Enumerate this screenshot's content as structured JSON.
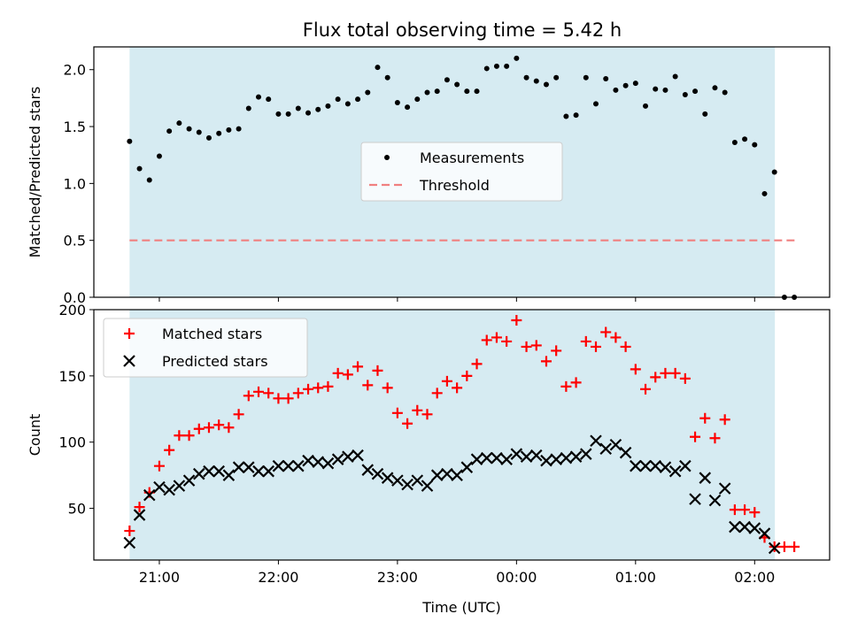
{
  "title": "Flux total observing time = 5.42 h",
  "chart_data": [
    {
      "type": "scatter",
      "ylabel": "Matched/Predicted stars",
      "ylim": [
        0,
        2.2
      ],
      "yticks": [
        "0.0",
        "0.5",
        "1.0",
        "1.5",
        "2.0"
      ],
      "xlim_hours": [
        20.45,
        26.63
      ],
      "shaded_span_hours": [
        20.75,
        26.17
      ],
      "threshold": 0.5,
      "legend": {
        "position": "center",
        "entries": [
          "Measurements",
          "Threshold"
        ]
      },
      "series": [
        {
          "name": "Measurements",
          "marker": "dot",
          "color": "#000000",
          "points": [
            [
              "20:45",
              1.37
            ],
            [
              "20:50",
              1.13
            ],
            [
              "20:55",
              1.03
            ],
            [
              "21:00",
              1.24
            ],
            [
              "21:05",
              1.46
            ],
            [
              "21:10",
              1.53
            ],
            [
              "21:15",
              1.48
            ],
            [
              "21:20",
              1.45
            ],
            [
              "21:25",
              1.4
            ],
            [
              "21:30",
              1.44
            ],
            [
              "21:35",
              1.47
            ],
            [
              "21:40",
              1.48
            ],
            [
              "21:45",
              1.66
            ],
            [
              "21:50",
              1.76
            ],
            [
              "21:55",
              1.74
            ],
            [
              "22:00",
              1.61
            ],
            [
              "22:05",
              1.61
            ],
            [
              "22:10",
              1.66
            ],
            [
              "22:15",
              1.62
            ],
            [
              "22:20",
              1.65
            ],
            [
              "22:25",
              1.68
            ],
            [
              "22:30",
              1.74
            ],
            [
              "22:35",
              1.7
            ],
            [
              "22:40",
              1.74
            ],
            [
              "22:45",
              1.8
            ],
            [
              "22:50",
              2.02
            ],
            [
              "22:55",
              1.93
            ],
            [
              "23:00",
              1.71
            ],
            [
              "23:05",
              1.67
            ],
            [
              "23:10",
              1.74
            ],
            [
              "23:15",
              1.8
            ],
            [
              "23:20",
              1.81
            ],
            [
              "23:25",
              1.91
            ],
            [
              "23:30",
              1.87
            ],
            [
              "23:35",
              1.81
            ],
            [
              "23:40",
              1.81
            ],
            [
              "23:45",
              2.01
            ],
            [
              "23:50",
              2.03
            ],
            [
              "23:55",
              2.03
            ],
            [
              "00:00",
              2.1
            ],
            [
              "00:05",
              1.93
            ],
            [
              "00:10",
              1.9
            ],
            [
              "00:15",
              1.87
            ],
            [
              "00:20",
              1.93
            ],
            [
              "00:25",
              1.59
            ],
            [
              "00:30",
              1.6
            ],
            [
              "00:35",
              1.93
            ],
            [
              "00:40",
              1.7
            ],
            [
              "00:45",
              1.92
            ],
            [
              "00:50",
              1.82
            ],
            [
              "00:55",
              1.86
            ],
            [
              "01:00",
              1.88
            ],
            [
              "01:05",
              1.68
            ],
            [
              "01:10",
              1.83
            ],
            [
              "01:15",
              1.82
            ],
            [
              "01:20",
              1.94
            ],
            [
              "01:25",
              1.78
            ],
            [
              "01:30",
              1.81
            ],
            [
              "01:35",
              1.61
            ],
            [
              "01:40",
              1.84
            ],
            [
              "01:45",
              1.8
            ],
            [
              "01:50",
              1.36
            ],
            [
              "01:55",
              1.39
            ],
            [
              "02:00",
              1.34
            ],
            [
              "02:05",
              0.91
            ],
            [
              "02:10",
              1.1
            ],
            [
              "02:15",
              0.0
            ],
            [
              "02:20",
              0.0
            ]
          ]
        },
        {
          "name": "Threshold",
          "marker": "dashed-line",
          "color": "#f08080",
          "x_range": [
            "20:45",
            "02:22"
          ],
          "value": 0.5
        }
      ]
    },
    {
      "type": "scatter",
      "xlabel": "Time (UTC)",
      "ylabel": "Count",
      "ylim": [
        11,
        200
      ],
      "yticks": [
        "50",
        "100",
        "150",
        "200"
      ],
      "xticks": [
        "21:00",
        "22:00",
        "23:00",
        "00:00",
        "01:00",
        "02:00"
      ],
      "xlim_hours": [
        20.45,
        26.63
      ],
      "shaded_span_hours": [
        20.75,
        26.17
      ],
      "legend": {
        "position": "upper-left",
        "entries": [
          "Matched stars",
          "Predicted stars"
        ]
      },
      "series": [
        {
          "name": "Matched stars",
          "marker": "plus",
          "color": "#ff0000",
          "points": [
            [
              "20:45",
              33
            ],
            [
              "20:50",
              51
            ],
            [
              "20:55",
              62
            ],
            [
              "21:00",
              82
            ],
            [
              "21:05",
              94
            ],
            [
              "21:10",
              105
            ],
            [
              "21:15",
              105
            ],
            [
              "21:20",
              110
            ],
            [
              "21:25",
              111
            ],
            [
              "21:30",
              113
            ],
            [
              "21:35",
              111
            ],
            [
              "21:40",
              121
            ],
            [
              "21:45",
              135
            ],
            [
              "21:50",
              138
            ],
            [
              "21:55",
              137
            ],
            [
              "22:00",
              133
            ],
            [
              "22:05",
              133
            ],
            [
              "22:10",
              137
            ],
            [
              "22:15",
              140
            ],
            [
              "22:20",
              141
            ],
            [
              "22:25",
              142
            ],
            [
              "22:30",
              152
            ],
            [
              "22:35",
              151
            ],
            [
              "22:40",
              157
            ],
            [
              "22:45",
              143
            ],
            [
              "22:50",
              154
            ],
            [
              "22:55",
              141
            ],
            [
              "23:00",
              122
            ],
            [
              "23:05",
              114
            ],
            [
              "23:10",
              124
            ],
            [
              "23:15",
              121
            ],
            [
              "23:20",
              137
            ],
            [
              "23:25",
              146
            ],
            [
              "23:30",
              141
            ],
            [
              "23:35",
              150
            ],
            [
              "23:40",
              159
            ],
            [
              "23:45",
              177
            ],
            [
              "23:50",
              179
            ],
            [
              "23:55",
              176
            ],
            [
              "00:00",
              192
            ],
            [
              "00:05",
              172
            ],
            [
              "00:10",
              173
            ],
            [
              "00:15",
              161
            ],
            [
              "00:20",
              169
            ],
            [
              "00:25",
              142
            ],
            [
              "00:30",
              145
            ],
            [
              "00:35",
              176
            ],
            [
              "00:40",
              172
            ],
            [
              "00:45",
              183
            ],
            [
              "00:50",
              179
            ],
            [
              "00:55",
              172
            ],
            [
              "01:00",
              155
            ],
            [
              "01:05",
              140
            ],
            [
              "01:10",
              149
            ],
            [
              "01:15",
              152
            ],
            [
              "01:20",
              152
            ],
            [
              "01:25",
              148
            ],
            [
              "01:30",
              104
            ],
            [
              "01:35",
              118
            ],
            [
              "01:40",
              103
            ],
            [
              "01:45",
              117
            ],
            [
              "01:50",
              49
            ],
            [
              "01:55",
              49
            ],
            [
              "02:00",
              47
            ],
            [
              "02:05",
              28
            ],
            [
              "02:10",
              21
            ],
            [
              "02:15",
              21
            ],
            [
              "02:20",
              21
            ]
          ]
        },
        {
          "name": "Predicted stars",
          "marker": "x",
          "color": "#000000",
          "points": [
            [
              "20:45",
              24
            ],
            [
              "20:50",
              45
            ],
            [
              "20:55",
              60
            ],
            [
              "21:00",
              66
            ],
            [
              "21:05",
              64
            ],
            [
              "21:10",
              67
            ],
            [
              "21:15",
              71
            ],
            [
              "21:20",
              76
            ],
            [
              "21:25",
              78
            ],
            [
              "21:30",
              78
            ],
            [
              "21:35",
              75
            ],
            [
              "21:40",
              81
            ],
            [
              "21:45",
              81
            ],
            [
              "21:50",
              78
            ],
            [
              "21:55",
              78
            ],
            [
              "22:00",
              82
            ],
            [
              "22:05",
              82
            ],
            [
              "22:10",
              82
            ],
            [
              "22:15",
              86
            ],
            [
              "22:20",
              85
            ],
            [
              "22:25",
              84
            ],
            [
              "22:30",
              87
            ],
            [
              "22:35",
              89
            ],
            [
              "22:40",
              90
            ],
            [
              "22:45",
              79
            ],
            [
              "22:50",
              76
            ],
            [
              "22:55",
              73
            ],
            [
              "23:00",
              71
            ],
            [
              "23:05",
              68
            ],
            [
              "23:10",
              71
            ],
            [
              "23:15",
              67
            ],
            [
              "23:20",
              75
            ],
            [
              "23:25",
              76
            ],
            [
              "23:30",
              75
            ],
            [
              "23:35",
              81
            ],
            [
              "23:40",
              87
            ],
            [
              "23:45",
              88
            ],
            [
              "23:50",
              88
            ],
            [
              "23:55",
              87
            ],
            [
              "00:00",
              91
            ],
            [
              "00:05",
              89
            ],
            [
              "00:10",
              90
            ],
            [
              "00:15",
              86
            ],
            [
              "00:20",
              87
            ],
            [
              "00:25",
              88
            ],
            [
              "00:30",
              89
            ],
            [
              "00:35",
              91
            ],
            [
              "00:40",
              101
            ],
            [
              "00:45",
              95
            ],
            [
              "00:50",
              98
            ],
            [
              "00:55",
              92
            ],
            [
              "01:00",
              82
            ],
            [
              "01:05",
              82
            ],
            [
              "01:10",
              82
            ],
            [
              "01:15",
              81
            ],
            [
              "01:20",
              78
            ],
            [
              "01:25",
              82
            ],
            [
              "01:30",
              57
            ],
            [
              "01:35",
              73
            ],
            [
              "01:40",
              56
            ],
            [
              "01:45",
              65
            ],
            [
              "01:50",
              36
            ],
            [
              "01:55",
              36
            ],
            [
              "02:00",
              35
            ],
            [
              "02:05",
              31
            ],
            [
              "02:10",
              20
            ]
          ]
        }
      ]
    }
  ]
}
